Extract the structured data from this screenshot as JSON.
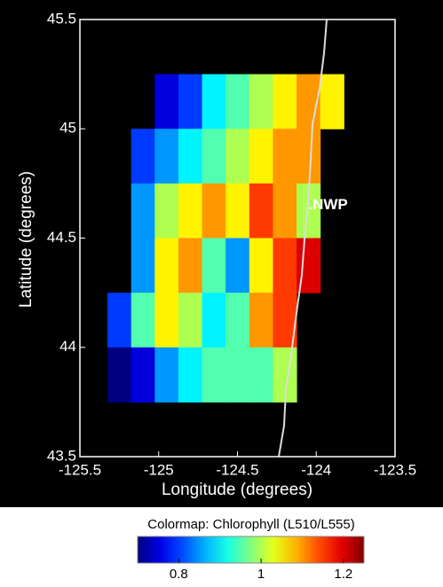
{
  "chart_data": {
    "type": "contour",
    "xlabel": "Longitude (degrees)",
    "ylabel": "Latitude (degrees)",
    "xlim": [
      -125.5,
      -123.5
    ],
    "xticks": [
      -125.5,
      -125,
      -124.5,
      -124,
      -123.5
    ],
    "ylim": [
      43.5,
      45.5
    ],
    "yticks": [
      43.5,
      44,
      44.5,
      45,
      45.5
    ],
    "x": [
      -125.25,
      -125.1,
      -124.95,
      -124.8,
      -124.65,
      -124.5,
      -124.35,
      -124.2,
      -124.05,
      -123.9
    ],
    "y": [
      45.125,
      44.875,
      44.625,
      44.375,
      44.125,
      43.875
    ],
    "z": [
      [
        null,
        null,
        0.75,
        0.8,
        0.9,
        0.95,
        1.0,
        1.05,
        1.1,
        1.05
      ],
      [
        null,
        0.8,
        0.85,
        0.9,
        0.95,
        1.0,
        1.05,
        1.1,
        1.1,
        null
      ],
      [
        null,
        0.85,
        1.0,
        1.05,
        1.1,
        1.05,
        1.15,
        1.1,
        1.0,
        null
      ],
      [
        null,
        0.85,
        1.05,
        1.1,
        0.95,
        0.85,
        1.05,
        1.15,
        1.2,
        null
      ],
      [
        0.8,
        0.95,
        1.05,
        1.0,
        0.9,
        0.95,
        1.1,
        1.15,
        null,
        null
      ],
      [
        0.7,
        0.75,
        0.85,
        0.9,
        0.95,
        0.95,
        0.95,
        1.0,
        null,
        null
      ]
    ],
    "colormap": "jet",
    "colorbar_label": "Colormap:  Chlorophyll (L510/L555)",
    "zlim": [
      0.7,
      1.25
    ],
    "zticks": [
      0.8,
      1,
      1.2
    ],
    "annotations": [
      {
        "text": ".NWP",
        "x": -124.05,
        "y": 44.65
      }
    ]
  }
}
